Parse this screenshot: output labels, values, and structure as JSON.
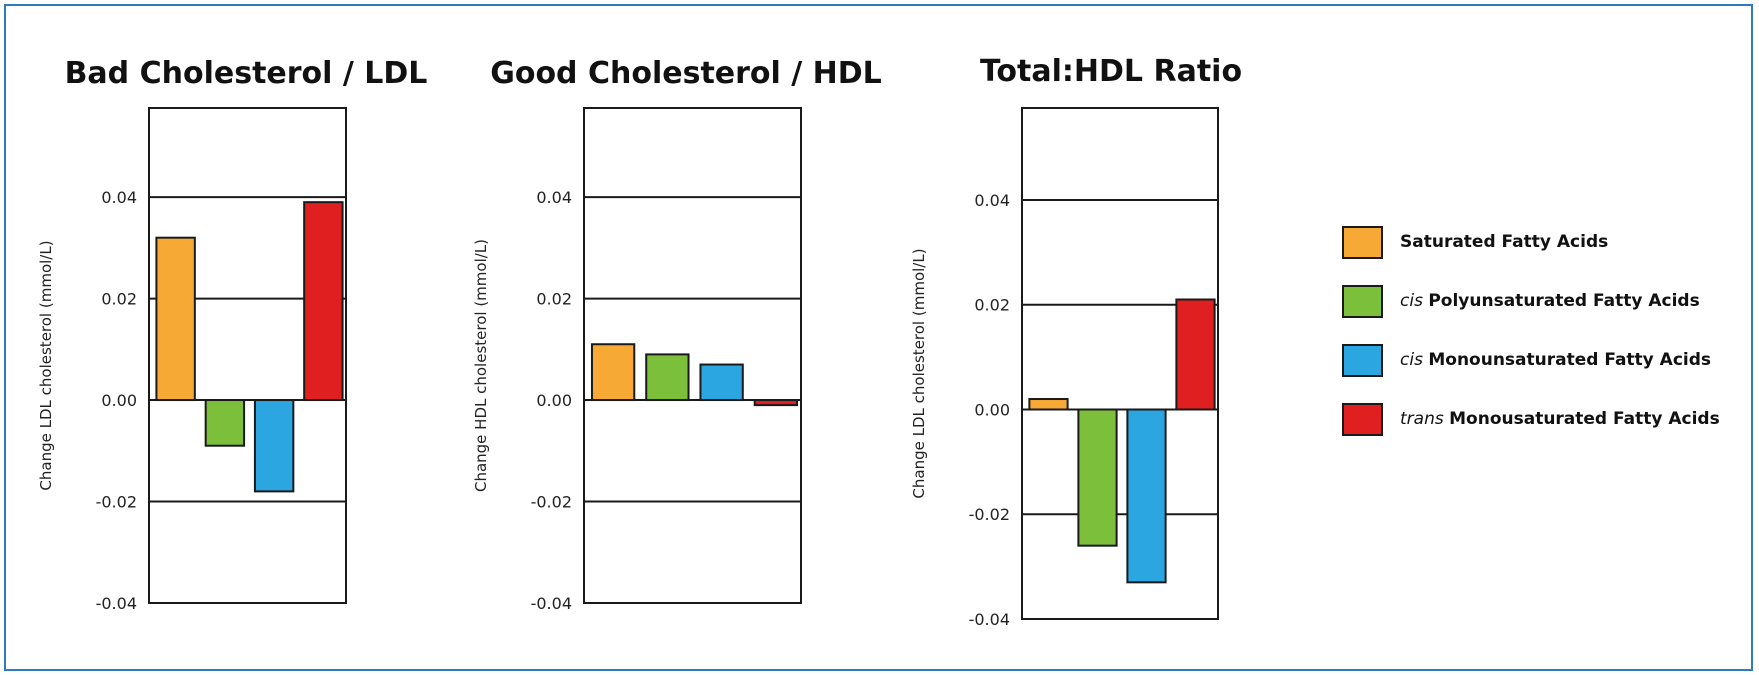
{
  "chart_data": [
    {
      "type": "bar",
      "title": "Bad Cholesterol / LDL",
      "ylabel": "Change LDL cholesterol (mmol/L)",
      "ylim": [
        -0.04,
        0.04
      ],
      "yticks": [
        "-0.04",
        "-0.02",
        "0.00",
        "0.02",
        "0.04"
      ],
      "categories": [
        "Saturated Fatty Acids",
        "cis Polyunsaturated Fatty Acids",
        "cis Monounsaturated Fatty Acids",
        "trans Monousaturated Fatty Acids"
      ],
      "values": [
        0.032,
        -0.009,
        -0.018,
        0.039
      ]
    },
    {
      "type": "bar",
      "title": "Good Cholesterol / HDL",
      "ylabel": "Change HDL cholesterol (mmol/L)",
      "ylim": [
        -0.04,
        0.04
      ],
      "yticks": [
        "-0.04",
        "-0.02",
        "0.00",
        "0.02",
        "0.04"
      ],
      "categories": [
        "Saturated Fatty Acids",
        "cis Polyunsaturated Fatty Acids",
        "cis Monounsaturated Fatty Acids",
        "trans Monousaturated Fatty Acids"
      ],
      "values": [
        0.011,
        0.009,
        0.007,
        -0.001
      ]
    },
    {
      "type": "bar",
      "title": "Total:HDL Ratio",
      "ylabel": "Change LDL cholesterol (mmol/L)",
      "ylim": [
        -0.04,
        0.04
      ],
      "yticks": [
        "-0.04",
        "-0.02",
        "0.00",
        "0.02",
        "0.04"
      ],
      "categories": [
        "Saturated Fatty Acids",
        "cis Polyunsaturated Fatty Acids",
        "cis Monounsaturated Fatty Acids",
        "trans Monousaturated Fatty Acids"
      ],
      "values": [
        0.002,
        -0.026,
        -0.033,
        0.021
      ]
    }
  ],
  "colors": {
    "saturated": "#f7a935",
    "cis_poly": "#7cbf3a",
    "cis_mono": "#2ba6e0",
    "trans_mono": "#e02020",
    "frame": "#2e7cc0"
  },
  "legend": [
    {
      "prefix": "",
      "label": "Saturated Fatty Acids",
      "color": "#f7a935"
    },
    {
      "prefix": "cis",
      "label": "Polyunsaturated Fatty Acids",
      "color": "#7cbf3a"
    },
    {
      "prefix": "cis",
      "label": "Monounsaturated Fatty Acids",
      "color": "#2ba6e0"
    },
    {
      "prefix": "trans",
      "label": "Monousaturated Fatty Acids",
      "color": "#e02020"
    }
  ]
}
